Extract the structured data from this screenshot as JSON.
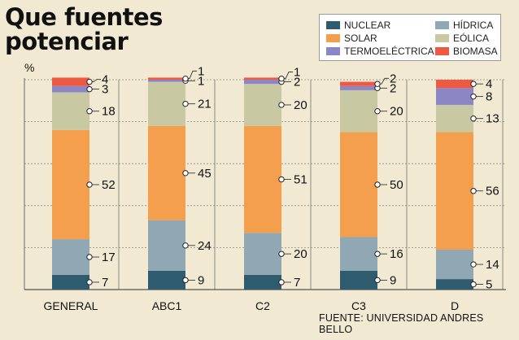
{
  "title": {
    "line1": "Que fuentes",
    "line2": "potenciar"
  },
  "source": "FUENTE: UNIVERSIDAD ANDRES BELLO",
  "legend": [
    {
      "key": "nuclear",
      "label": "NUCLEAR"
    },
    {
      "key": "hidrica",
      "label": "HÍDRICA"
    },
    {
      "key": "solar",
      "label": "SOLAR"
    },
    {
      "key": "eolica",
      "label": "EÓLICA"
    },
    {
      "key": "termo",
      "label": "TERMOELÉCTRICA"
    },
    {
      "key": "biomasa",
      "label": "BIOMASA"
    }
  ],
  "chart_data": {
    "type": "bar",
    "stacked": true,
    "ylabel": "%",
    "ylim": [
      0,
      100
    ],
    "grid": true,
    "legend_position": "top-right",
    "categories": [
      "GENERAL",
      "ABC1",
      "C2",
      "C3",
      "D"
    ],
    "series": [
      {
        "name": "NUCLEAR",
        "color": "#2e5c6e",
        "values": [
          7,
          9,
          7,
          9,
          5
        ]
      },
      {
        "name": "HÍDRICA",
        "color": "#8fa8b4",
        "values": [
          17,
          24,
          20,
          16,
          14
        ]
      },
      {
        "name": "SOLAR",
        "color": "#f39f4d",
        "values": [
          52,
          45,
          51,
          50,
          56
        ]
      },
      {
        "name": "EÓLICA",
        "color": "#c8c8a3",
        "values": [
          18,
          21,
          20,
          20,
          13
        ]
      },
      {
        "name": "TERMOELÉCTRICA",
        "color": "#8c86c6",
        "values": [
          3,
          1,
          2,
          2,
          8
        ]
      },
      {
        "name": "BIOMASA",
        "color": "#ec5a43",
        "values": [
          4,
          1,
          1,
          2,
          4
        ]
      }
    ]
  }
}
